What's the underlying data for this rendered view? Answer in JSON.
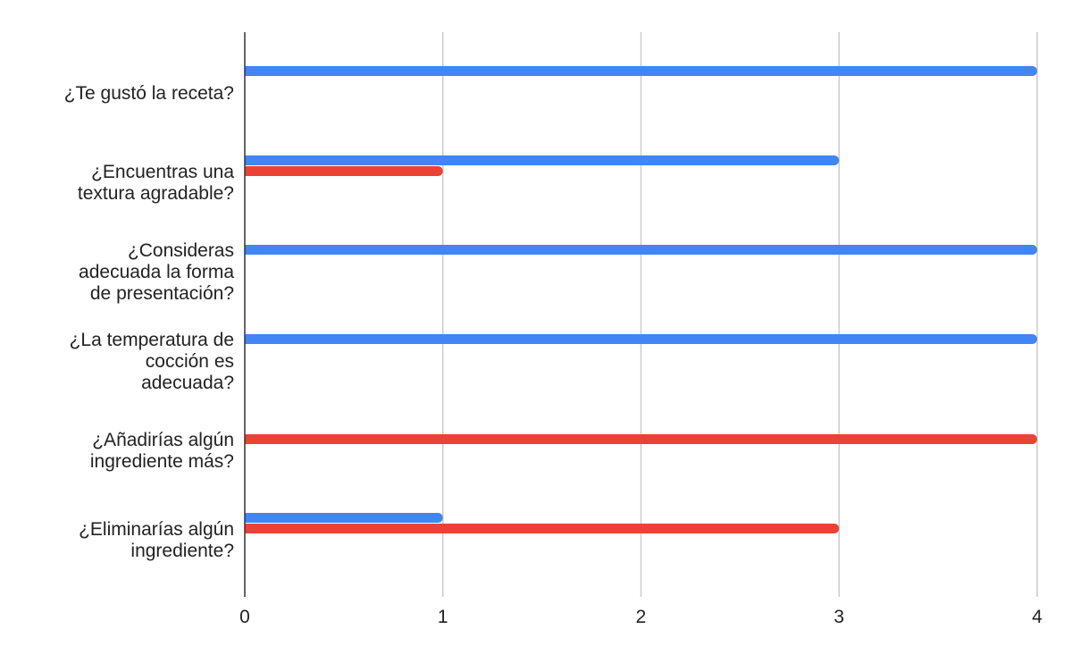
{
  "chart_data": {
    "type": "bar",
    "orientation": "horizontal",
    "categories": [
      [
        "¿Te gustó la receta?"
      ],
      [
        "¿Encuentras una",
        "textura agradable?"
      ],
      [
        "¿Consideras",
        "adecuada la forma",
        "de presentación?"
      ],
      [
        "¿La temperatura de",
        "cocción es",
        "adecuada?"
      ],
      [
        "¿Añadirías algún",
        "ingrediente más?"
      ],
      [
        "¿Eliminarías algún",
        "ingrediente?"
      ]
    ],
    "series": [
      {
        "color": "#4285F4",
        "values": [
          4,
          3,
          4,
          4,
          0,
          1
        ]
      },
      {
        "color": "#EA4335",
        "values": [
          0,
          1,
          0,
          0,
          4,
          3
        ]
      }
    ],
    "xlim": [
      0,
      4
    ],
    "xticks": [
      "0",
      "1",
      "2",
      "3",
      "4"
    ],
    "grid": true,
    "title": "",
    "xlabel": "",
    "ylabel": ""
  }
}
